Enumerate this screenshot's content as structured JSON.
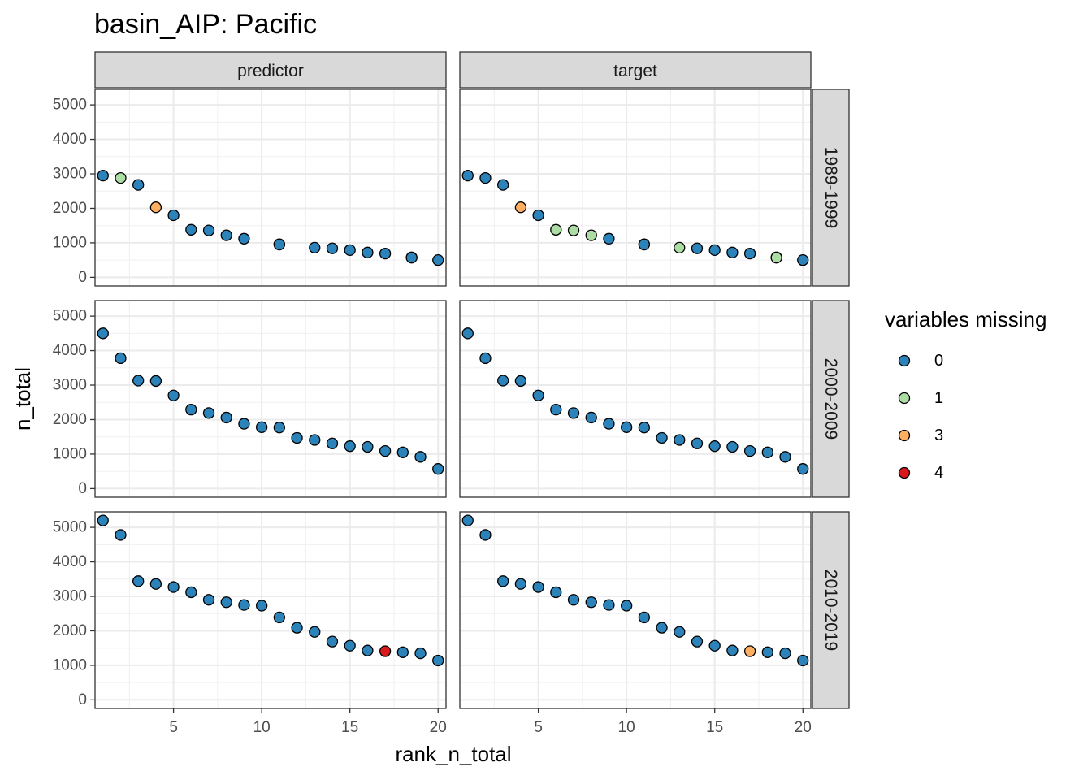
{
  "chart_data": {
    "type": "scatter",
    "title": "basin_AIP: Pacific",
    "xlabel": "rank_n_total",
    "ylabel": "n_total",
    "xlim": [
      0.55,
      20.45
    ],
    "ylim": [
      -250,
      5450
    ],
    "x_ticks": [
      5,
      10,
      15,
      20
    ],
    "y_ticks": [
      0,
      1000,
      2000,
      3000,
      4000,
      5000
    ],
    "columns": [
      "predictor",
      "target"
    ],
    "rows": [
      "1989-1999",
      "2000-2009",
      "2010-2019"
    ],
    "legend": {
      "title": "variables missing",
      "entries": [
        {
          "label": "0",
          "color": "#2b83ba"
        },
        {
          "label": "1",
          "color": "#abdda4"
        },
        {
          "label": "3",
          "color": "#fdae61"
        },
        {
          "label": "4",
          "color": "#d7191c"
        }
      ]
    },
    "panels": [
      {
        "row": "1989-1999",
        "column": "predictor",
        "points": [
          {
            "x": 1,
            "y": 2950,
            "missing": "0"
          },
          {
            "x": 2,
            "y": 2880,
            "missing": "1"
          },
          {
            "x": 3,
            "y": 2680,
            "missing": "0"
          },
          {
            "x": 4,
            "y": 2030,
            "missing": "3"
          },
          {
            "x": 5,
            "y": 1800,
            "missing": "0"
          },
          {
            "x": 6,
            "y": 1380,
            "missing": "0"
          },
          {
            "x": 7,
            "y": 1360,
            "missing": "0"
          },
          {
            "x": 8,
            "y": 1220,
            "missing": "0"
          },
          {
            "x": 9,
            "y": 1120,
            "missing": "0"
          },
          {
            "x": 11,
            "y": 960,
            "missing": "0"
          },
          {
            "x": 11,
            "y": 950,
            "missing": "0"
          },
          {
            "x": 13,
            "y": 860,
            "missing": "0"
          },
          {
            "x": 14,
            "y": 840,
            "missing": "0"
          },
          {
            "x": 15,
            "y": 790,
            "missing": "0"
          },
          {
            "x": 16,
            "y": 720,
            "missing": "0"
          },
          {
            "x": 17,
            "y": 690,
            "missing": "0"
          },
          {
            "x": 18.5,
            "y": 580,
            "missing": "0"
          },
          {
            "x": 18.5,
            "y": 570,
            "missing": "0"
          },
          {
            "x": 20,
            "y": 500,
            "missing": "0"
          }
        ]
      },
      {
        "row": "1989-1999",
        "column": "target",
        "points": [
          {
            "x": 1,
            "y": 2950,
            "missing": "0"
          },
          {
            "x": 2,
            "y": 2880,
            "missing": "0"
          },
          {
            "x": 3,
            "y": 2680,
            "missing": "0"
          },
          {
            "x": 4,
            "y": 2030,
            "missing": "3"
          },
          {
            "x": 5,
            "y": 1800,
            "missing": "0"
          },
          {
            "x": 6,
            "y": 1380,
            "missing": "1"
          },
          {
            "x": 7,
            "y": 1360,
            "missing": "1"
          },
          {
            "x": 8,
            "y": 1220,
            "missing": "1"
          },
          {
            "x": 9,
            "y": 1120,
            "missing": "0"
          },
          {
            "x": 11,
            "y": 960,
            "missing": "0"
          },
          {
            "x": 11,
            "y": 950,
            "missing": "0"
          },
          {
            "x": 13,
            "y": 860,
            "missing": "1"
          },
          {
            "x": 14,
            "y": 840,
            "missing": "0"
          },
          {
            "x": 15,
            "y": 790,
            "missing": "0"
          },
          {
            "x": 16,
            "y": 720,
            "missing": "0"
          },
          {
            "x": 17,
            "y": 690,
            "missing": "0"
          },
          {
            "x": 18.5,
            "y": 580,
            "missing": "1"
          },
          {
            "x": 18.5,
            "y": 570,
            "missing": "1"
          },
          {
            "x": 20,
            "y": 500,
            "missing": "0"
          }
        ]
      },
      {
        "row": "2000-2009",
        "column": "predictor",
        "points": [
          {
            "x": 1,
            "y": 4500,
            "missing": "0"
          },
          {
            "x": 2,
            "y": 3780,
            "missing": "0"
          },
          {
            "x": 3,
            "y": 3130,
            "missing": "0"
          },
          {
            "x": 4,
            "y": 3120,
            "missing": "0"
          },
          {
            "x": 5,
            "y": 2700,
            "missing": "0"
          },
          {
            "x": 6,
            "y": 2290,
            "missing": "0"
          },
          {
            "x": 7,
            "y": 2190,
            "missing": "0"
          },
          {
            "x": 8,
            "y": 2060,
            "missing": "0"
          },
          {
            "x": 9,
            "y": 1880,
            "missing": "0"
          },
          {
            "x": 10,
            "y": 1780,
            "missing": "0"
          },
          {
            "x": 11,
            "y": 1770,
            "missing": "0"
          },
          {
            "x": 12,
            "y": 1470,
            "missing": "0"
          },
          {
            "x": 13,
            "y": 1410,
            "missing": "0"
          },
          {
            "x": 14,
            "y": 1310,
            "missing": "0"
          },
          {
            "x": 15,
            "y": 1230,
            "missing": "0"
          },
          {
            "x": 16,
            "y": 1210,
            "missing": "0"
          },
          {
            "x": 17,
            "y": 1090,
            "missing": "0"
          },
          {
            "x": 18,
            "y": 1050,
            "missing": "0"
          },
          {
            "x": 19,
            "y": 920,
            "missing": "0"
          },
          {
            "x": 20,
            "y": 570,
            "missing": "0"
          }
        ]
      },
      {
        "row": "2000-2009",
        "column": "target",
        "points": [
          {
            "x": 1,
            "y": 4500,
            "missing": "0"
          },
          {
            "x": 2,
            "y": 3780,
            "missing": "0"
          },
          {
            "x": 3,
            "y": 3130,
            "missing": "0"
          },
          {
            "x": 4,
            "y": 3120,
            "missing": "0"
          },
          {
            "x": 5,
            "y": 2700,
            "missing": "0"
          },
          {
            "x": 6,
            "y": 2290,
            "missing": "0"
          },
          {
            "x": 7,
            "y": 2190,
            "missing": "0"
          },
          {
            "x": 8,
            "y": 2060,
            "missing": "0"
          },
          {
            "x": 9,
            "y": 1880,
            "missing": "0"
          },
          {
            "x": 10,
            "y": 1780,
            "missing": "0"
          },
          {
            "x": 11,
            "y": 1770,
            "missing": "0"
          },
          {
            "x": 12,
            "y": 1470,
            "missing": "0"
          },
          {
            "x": 13,
            "y": 1410,
            "missing": "0"
          },
          {
            "x": 14,
            "y": 1310,
            "missing": "0"
          },
          {
            "x": 15,
            "y": 1230,
            "missing": "0"
          },
          {
            "x": 16,
            "y": 1210,
            "missing": "0"
          },
          {
            "x": 17,
            "y": 1090,
            "missing": "0"
          },
          {
            "x": 18,
            "y": 1050,
            "missing": "0"
          },
          {
            "x": 19,
            "y": 920,
            "missing": "0"
          },
          {
            "x": 20,
            "y": 570,
            "missing": "0"
          }
        ]
      },
      {
        "row": "2010-2019",
        "column": "predictor",
        "points": [
          {
            "x": 1,
            "y": 5200,
            "missing": "0"
          },
          {
            "x": 2,
            "y": 4780,
            "missing": "0"
          },
          {
            "x": 3,
            "y": 3440,
            "missing": "0"
          },
          {
            "x": 4,
            "y": 3360,
            "missing": "0"
          },
          {
            "x": 5,
            "y": 3270,
            "missing": "0"
          },
          {
            "x": 6,
            "y": 3120,
            "missing": "0"
          },
          {
            "x": 7,
            "y": 2900,
            "missing": "0"
          },
          {
            "x": 8,
            "y": 2830,
            "missing": "0"
          },
          {
            "x": 9,
            "y": 2750,
            "missing": "0"
          },
          {
            "x": 10,
            "y": 2730,
            "missing": "0"
          },
          {
            "x": 11,
            "y": 2390,
            "missing": "0"
          },
          {
            "x": 12,
            "y": 2090,
            "missing": "0"
          },
          {
            "x": 13,
            "y": 1970,
            "missing": "0"
          },
          {
            "x": 14,
            "y": 1690,
            "missing": "0"
          },
          {
            "x": 15,
            "y": 1570,
            "missing": "0"
          },
          {
            "x": 16,
            "y": 1430,
            "missing": "0"
          },
          {
            "x": 17,
            "y": 1410,
            "missing": "4"
          },
          {
            "x": 18,
            "y": 1380,
            "missing": "0"
          },
          {
            "x": 19,
            "y": 1350,
            "missing": "0"
          },
          {
            "x": 20,
            "y": 1140,
            "missing": "0"
          }
        ]
      },
      {
        "row": "2010-2019",
        "column": "target",
        "points": [
          {
            "x": 1,
            "y": 5200,
            "missing": "0"
          },
          {
            "x": 2,
            "y": 4780,
            "missing": "0"
          },
          {
            "x": 3,
            "y": 3440,
            "missing": "0"
          },
          {
            "x": 4,
            "y": 3360,
            "missing": "0"
          },
          {
            "x": 5,
            "y": 3270,
            "missing": "0"
          },
          {
            "x": 6,
            "y": 3120,
            "missing": "0"
          },
          {
            "x": 7,
            "y": 2900,
            "missing": "0"
          },
          {
            "x": 8,
            "y": 2830,
            "missing": "0"
          },
          {
            "x": 9,
            "y": 2750,
            "missing": "0"
          },
          {
            "x": 10,
            "y": 2730,
            "missing": "0"
          },
          {
            "x": 11,
            "y": 2390,
            "missing": "0"
          },
          {
            "x": 12,
            "y": 2090,
            "missing": "0"
          },
          {
            "x": 13,
            "y": 1970,
            "missing": "0"
          },
          {
            "x": 14,
            "y": 1690,
            "missing": "0"
          },
          {
            "x": 15,
            "y": 1570,
            "missing": "0"
          },
          {
            "x": 16,
            "y": 1430,
            "missing": "0"
          },
          {
            "x": 17,
            "y": 1410,
            "missing": "3"
          },
          {
            "x": 18,
            "y": 1380,
            "missing": "0"
          },
          {
            "x": 19,
            "y": 1350,
            "missing": "0"
          },
          {
            "x": 20,
            "y": 1140,
            "missing": "0"
          }
        ]
      }
    ]
  }
}
